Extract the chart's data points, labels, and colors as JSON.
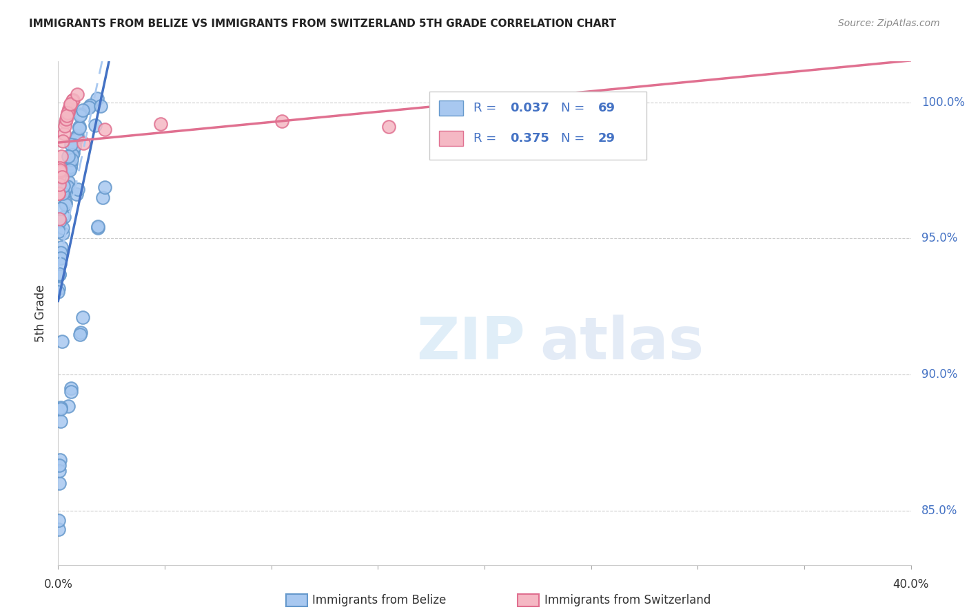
{
  "title": "IMMIGRANTS FROM BELIZE VS IMMIGRANTS FROM SWITZERLAND 5TH GRADE CORRELATION CHART",
  "source_text": "Source: ZipAtlas.com",
  "ylabel": "5th Grade",
  "watermark_zip": "ZIP",
  "watermark_atlas": "atlas",
  "y_ticks": [
    85.0,
    90.0,
    95.0,
    100.0
  ],
  "y_tick_labels": [
    "85.0%",
    "90.0%",
    "95.0%",
    "100.0%"
  ],
  "belize_R": "0.037",
  "belize_N": "69",
  "swiss_R": "0.375",
  "swiss_N": "29",
  "belize_color": "#a8c8f0",
  "belize_edge": "#6699cc",
  "swiss_color": "#f5b8c4",
  "swiss_edge": "#e07090",
  "trendline_belize_color": "#4472c4",
  "trendline_swiss_color": "#e07090",
  "trendline_dashed_color": "#a8c8f0",
  "legend_color": "#4472c4",
  "x_min": 0.0,
  "x_max": 0.4,
  "y_min": 83.0,
  "y_max": 101.5
}
